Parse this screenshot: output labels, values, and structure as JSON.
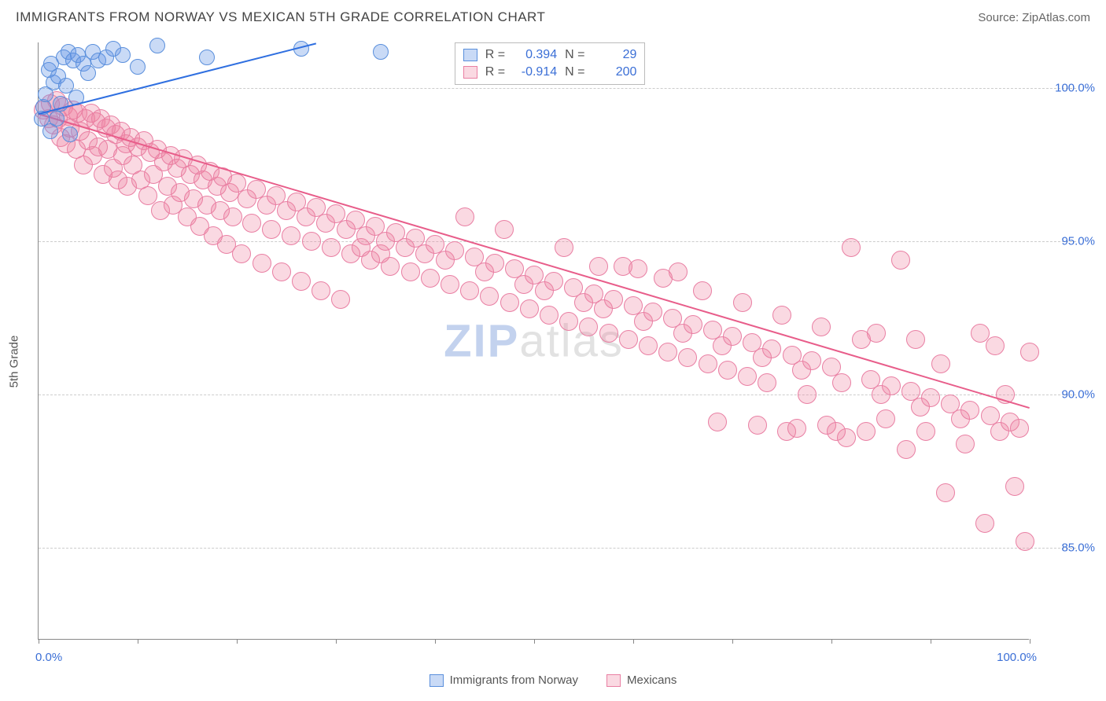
{
  "header": {
    "title": "IMMIGRANTS FROM NORWAY VS MEXICAN 5TH GRADE CORRELATION CHART",
    "source_label": "Source: ",
    "source_value": "ZipAtlas.com"
  },
  "ylabel": "5th Grade",
  "watermark": {
    "part1": "ZIP",
    "part2": "atlas"
  },
  "axes": {
    "xlim": [
      0,
      100
    ],
    "ylim": [
      82,
      101.5
    ],
    "x_label_min": "0.0%",
    "x_label_max": "100.0%",
    "y_grid": [
      {
        "v": 100,
        "label": "100.0%"
      },
      {
        "v": 95,
        "label": "95.0%"
      },
      {
        "v": 90,
        "label": "90.0%"
      },
      {
        "v": 85,
        "label": "85.0%"
      }
    ],
    "x_ticks": [
      0,
      10,
      20,
      30,
      40,
      50,
      60,
      70,
      80,
      90,
      100
    ],
    "axis_color": "#888888",
    "grid_color": "#cccccc",
    "tick_label_color": "#3b6fd6"
  },
  "series": {
    "norway": {
      "label": "Immigrants from Norway",
      "fill": "rgba(100,150,230,0.35)",
      "stroke": "#5a8fdc",
      "line_color": "#2f6fe0",
      "marker_r": 10,
      "trend": {
        "x1": 0,
        "y1": 99.2,
        "x2": 28,
        "y2": 101.5
      },
      "R_label": "R =",
      "R": "0.394",
      "N_label": "N =",
      "N": "29",
      "points": [
        [
          0.3,
          99.0
        ],
        [
          0.5,
          99.4
        ],
        [
          0.7,
          99.8
        ],
        [
          1.0,
          100.6
        ],
        [
          1.2,
          98.6
        ],
        [
          1.3,
          100.8
        ],
        [
          1.5,
          100.2
        ],
        [
          1.8,
          99.0
        ],
        [
          2.0,
          100.4
        ],
        [
          2.2,
          99.5
        ],
        [
          2.5,
          101.0
        ],
        [
          2.8,
          100.1
        ],
        [
          3.0,
          101.2
        ],
        [
          3.2,
          98.5
        ],
        [
          3.5,
          100.9
        ],
        [
          3.8,
          99.7
        ],
        [
          4.0,
          101.1
        ],
        [
          4.5,
          100.8
        ],
        [
          5.0,
          100.5
        ],
        [
          5.5,
          101.2
        ],
        [
          6.0,
          100.9
        ],
        [
          6.8,
          101.0
        ],
        [
          7.5,
          101.3
        ],
        [
          8.5,
          101.1
        ],
        [
          10.0,
          100.7
        ],
        [
          12.0,
          101.4
        ],
        [
          17.0,
          101.0
        ],
        [
          26.5,
          101.3
        ],
        [
          34.5,
          101.2
        ]
      ]
    },
    "mexicans": {
      "label": "Mexicans",
      "fill": "rgba(240,130,160,0.30)",
      "stroke": "#e97fa3",
      "line_color": "#e85d8a",
      "marker_r": 12,
      "trend": {
        "x1": 0,
        "y1": 99.2,
        "x2": 100,
        "y2": 89.6
      },
      "R_label": "R =",
      "R": "-0.914",
      "N_label": "N =",
      "N": "200",
      "points": [
        [
          0.5,
          99.3
        ],
        [
          1.0,
          99.0
        ],
        [
          1.2,
          99.5
        ],
        [
          1.5,
          98.8
        ],
        [
          1.8,
          99.6
        ],
        [
          2.0,
          99.0
        ],
        [
          2.2,
          98.4
        ],
        [
          2.5,
          99.4
        ],
        [
          2.8,
          98.2
        ],
        [
          3.0,
          99.1
        ],
        [
          3.2,
          98.7
        ],
        [
          3.5,
          99.3
        ],
        [
          3.8,
          98.0
        ],
        [
          4.0,
          99.2
        ],
        [
          4.2,
          98.6
        ],
        [
          4.5,
          97.5
        ],
        [
          4.8,
          99.0
        ],
        [
          5.0,
          98.3
        ],
        [
          5.3,
          99.2
        ],
        [
          5.5,
          97.8
        ],
        [
          5.8,
          98.9
        ],
        [
          6.0,
          98.1
        ],
        [
          6.3,
          99.0
        ],
        [
          6.5,
          97.2
        ],
        [
          6.8,
          98.7
        ],
        [
          7.0,
          98.0
        ],
        [
          7.3,
          98.8
        ],
        [
          7.5,
          97.4
        ],
        [
          7.8,
          98.5
        ],
        [
          8.0,
          97.0
        ],
        [
          8.3,
          98.6
        ],
        [
          8.5,
          97.8
        ],
        [
          8.8,
          98.2
        ],
        [
          9.0,
          96.8
        ],
        [
          9.3,
          98.4
        ],
        [
          9.5,
          97.5
        ],
        [
          10.0,
          98.1
        ],
        [
          10.3,
          97.0
        ],
        [
          10.6,
          98.3
        ],
        [
          11.0,
          96.5
        ],
        [
          11.3,
          97.9
        ],
        [
          11.6,
          97.2
        ],
        [
          12.0,
          98.0
        ],
        [
          12.3,
          96.0
        ],
        [
          12.6,
          97.6
        ],
        [
          13.0,
          96.8
        ],
        [
          13.3,
          97.8
        ],
        [
          13.6,
          96.2
        ],
        [
          14.0,
          97.4
        ],
        [
          14.3,
          96.6
        ],
        [
          14.6,
          97.7
        ],
        [
          15.0,
          95.8
        ],
        [
          15.3,
          97.2
        ],
        [
          15.6,
          96.4
        ],
        [
          16.0,
          97.5
        ],
        [
          16.3,
          95.5
        ],
        [
          16.6,
          97.0
        ],
        [
          17.0,
          96.2
        ],
        [
          17.3,
          97.3
        ],
        [
          17.6,
          95.2
        ],
        [
          18.0,
          96.8
        ],
        [
          18.3,
          96.0
        ],
        [
          18.6,
          97.1
        ],
        [
          19.0,
          94.9
        ],
        [
          19.3,
          96.6
        ],
        [
          19.6,
          95.8
        ],
        [
          20.0,
          96.9
        ],
        [
          20.5,
          94.6
        ],
        [
          21.0,
          96.4
        ],
        [
          21.5,
          95.6
        ],
        [
          22.0,
          96.7
        ],
        [
          22.5,
          94.3
        ],
        [
          23.0,
          96.2
        ],
        [
          23.5,
          95.4
        ],
        [
          24.0,
          96.5
        ],
        [
          24.5,
          94.0
        ],
        [
          25.0,
          96.0
        ],
        [
          25.5,
          95.2
        ],
        [
          26.0,
          96.3
        ],
        [
          26.5,
          93.7
        ],
        [
          27.0,
          95.8
        ],
        [
          27.5,
          95.0
        ],
        [
          28.0,
          96.1
        ],
        [
          28.5,
          93.4
        ],
        [
          29.0,
          95.6
        ],
        [
          29.5,
          94.8
        ],
        [
          30.0,
          95.9
        ],
        [
          30.5,
          93.1
        ],
        [
          31.0,
          95.4
        ],
        [
          31.5,
          94.6
        ],
        [
          32.0,
          95.7
        ],
        [
          32.5,
          94.8
        ],
        [
          33.0,
          95.2
        ],
        [
          33.5,
          94.4
        ],
        [
          34.0,
          95.5
        ],
        [
          34.5,
          94.6
        ],
        [
          35.0,
          95.0
        ],
        [
          35.5,
          94.2
        ],
        [
          36.0,
          95.3
        ],
        [
          37.0,
          94.8
        ],
        [
          37.5,
          94.0
        ],
        [
          38.0,
          95.1
        ],
        [
          39.0,
          94.6
        ],
        [
          39.5,
          93.8
        ],
        [
          40.0,
          94.9
        ],
        [
          41.0,
          94.4
        ],
        [
          41.5,
          93.6
        ],
        [
          42.0,
          94.7
        ],
        [
          43.0,
          95.8
        ],
        [
          43.5,
          93.4
        ],
        [
          44.0,
          94.5
        ],
        [
          45.0,
          94.0
        ],
        [
          45.5,
          93.2
        ],
        [
          46.0,
          94.3
        ],
        [
          47.0,
          95.4
        ],
        [
          47.5,
          93.0
        ],
        [
          48.0,
          94.1
        ],
        [
          49.0,
          93.6
        ],
        [
          49.5,
          92.8
        ],
        [
          50.0,
          93.9
        ],
        [
          51.0,
          93.4
        ],
        [
          51.5,
          92.6
        ],
        [
          52.0,
          93.7
        ],
        [
          53.0,
          94.8
        ],
        [
          53.5,
          92.4
        ],
        [
          54.0,
          93.5
        ],
        [
          55.0,
          93.0
        ],
        [
          55.5,
          92.2
        ],
        [
          56.0,
          93.3
        ],
        [
          57.0,
          92.8
        ],
        [
          57.5,
          92.0
        ],
        [
          58.0,
          93.1
        ],
        [
          59.0,
          94.2
        ],
        [
          59.5,
          91.8
        ],
        [
          60.0,
          92.9
        ],
        [
          61.0,
          92.4
        ],
        [
          61.5,
          91.6
        ],
        [
          62.0,
          92.7
        ],
        [
          63.0,
          93.8
        ],
        [
          63.5,
          91.4
        ],
        [
          64.0,
          92.5
        ],
        [
          65.0,
          92.0
        ],
        [
          65.5,
          91.2
        ],
        [
          66.0,
          92.3
        ],
        [
          67.0,
          93.4
        ],
        [
          67.5,
          91.0
        ],
        [
          68.0,
          92.1
        ],
        [
          69.0,
          91.6
        ],
        [
          69.5,
          90.8
        ],
        [
          70.0,
          91.9
        ],
        [
          71.0,
          93.0
        ],
        [
          71.5,
          90.6
        ],
        [
          72.0,
          91.7
        ],
        [
          73.0,
          91.2
        ],
        [
          73.5,
          90.4
        ],
        [
          74.0,
          91.5
        ],
        [
          75.0,
          92.6
        ],
        [
          75.5,
          88.8
        ],
        [
          76.0,
          91.3
        ],
        [
          77.0,
          90.8
        ],
        [
          77.5,
          90.0
        ],
        [
          78.0,
          91.1
        ],
        [
          79.0,
          92.2
        ],
        [
          79.5,
          89.0
        ],
        [
          80.0,
          90.9
        ],
        [
          81.0,
          90.4
        ],
        [
          81.5,
          88.6
        ],
        [
          82.0,
          94.8
        ],
        [
          83.0,
          91.8
        ],
        [
          83.5,
          88.8
        ],
        [
          84.0,
          90.5
        ],
        [
          85.0,
          90.0
        ],
        [
          85.5,
          89.2
        ],
        [
          86.0,
          90.3
        ],
        [
          87.0,
          94.4
        ],
        [
          87.5,
          88.2
        ],
        [
          88.0,
          90.1
        ],
        [
          89.0,
          89.6
        ],
        [
          89.5,
          88.8
        ],
        [
          90.0,
          89.9
        ],
        [
          91.0,
          91.0
        ],
        [
          91.5,
          86.8
        ],
        [
          92.0,
          89.7
        ],
        [
          93.0,
          89.2
        ],
        [
          93.5,
          88.4
        ],
        [
          94.0,
          89.5
        ],
        [
          95.0,
          92.0
        ],
        [
          95.5,
          85.8
        ],
        [
          96.0,
          89.3
        ],
        [
          97.0,
          88.8
        ],
        [
          97.5,
          90.0
        ],
        [
          98.0,
          89.1
        ],
        [
          98.5,
          87.0
        ],
        [
          99.0,
          88.9
        ],
        [
          99.5,
          85.2
        ],
        [
          100.0,
          91.4
        ],
        [
          96.5,
          91.6
        ],
        [
          88.5,
          91.8
        ],
        [
          84.5,
          92.0
        ],
        [
          80.5,
          88.8
        ],
        [
          76.5,
          88.9
        ],
        [
          72.5,
          89.0
        ],
        [
          68.5,
          89.1
        ],
        [
          64.5,
          94.0
        ],
        [
          60.5,
          94.1
        ],
        [
          56.5,
          94.2
        ]
      ]
    }
  }
}
